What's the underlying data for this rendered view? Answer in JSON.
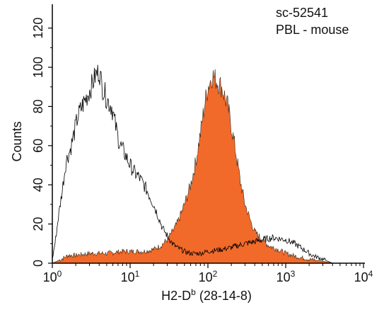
{
  "chart_data": {
    "type": "area",
    "xlabel": {
      "main": "H2-D",
      "sup": "b",
      "rest": " (28-14-8)"
    },
    "ylabel": "Counts",
    "annotation_lines": [
      "sc-52541",
      "PBL - mouse"
    ],
    "x_scale": "log",
    "xlim": [
      1,
      10000
    ],
    "ylim": [
      0,
      130
    ],
    "x_ticks": [
      {
        "base": "10",
        "exp": "0",
        "value": 1
      },
      {
        "base": "10",
        "exp": "1",
        "value": 10
      },
      {
        "base": "10",
        "exp": "2",
        "value": 100
      },
      {
        "base": "10",
        "exp": "3",
        "value": 1000
      },
      {
        "base": "10",
        "exp": "4",
        "value": 10000
      }
    ],
    "y_ticks": [
      0,
      20,
      40,
      60,
      80,
      100,
      120
    ],
    "colors": {
      "filled": "#f26a2a",
      "outline": "#000000",
      "axis": "#000000"
    },
    "series": [
      {
        "style": "outline",
        "x": [
          1.0,
          1.1,
          1.2,
          1.35,
          1.5,
          1.7,
          1.9,
          2.1,
          2.4,
          2.7,
          3.0,
          3.3,
          3.6,
          4.0,
          4.4,
          4.8,
          5.3,
          5.8,
          6.5,
          7.2,
          8.0,
          9.0,
          10,
          11.5,
          13,
          15,
          17,
          20,
          23,
          26,
          30,
          35,
          40,
          50,
          60,
          80,
          100,
          150,
          200,
          300,
          400,
          500,
          700,
          1000,
          1300,
          1700,
          2200,
          3000,
          4000
        ],
        "y": [
          2,
          12,
          24,
          38,
          52,
          58,
          66,
          74,
          80,
          84,
          88,
          92,
          96,
          98,
          90,
          86,
          82,
          80,
          70,
          62,
          58,
          54,
          50,
          46,
          44,
          40,
          36,
          30,
          24,
          18,
          14,
          10,
          8,
          6,
          5,
          5,
          6,
          7,
          8,
          10,
          11,
          12,
          13,
          12,
          10,
          7,
          4,
          2,
          0
        ]
      },
      {
        "style": "filled",
        "x": [
          1.0,
          1.3,
          1.6,
          2.0,
          3.0,
          5.0,
          8.0,
          10,
          15,
          20,
          25,
          30,
          35,
          40,
          45,
          50,
          60,
          70,
          80,
          90,
          100,
          115,
          130,
          150,
          180,
          200,
          230,
          260,
          300,
          350,
          400,
          500,
          600,
          800,
          1000,
          1500,
          2000,
          3000,
          4000
        ],
        "y": [
          0,
          2,
          4,
          4,
          5,
          5,
          6,
          6,
          6,
          7,
          9,
          12,
          16,
          20,
          25,
          30,
          40,
          52,
          66,
          80,
          90,
          96,
          93,
          90,
          80,
          70,
          56,
          42,
          30,
          22,
          16,
          12,
          9,
          7,
          5,
          3,
          2,
          1,
          0
        ]
      }
    ]
  }
}
